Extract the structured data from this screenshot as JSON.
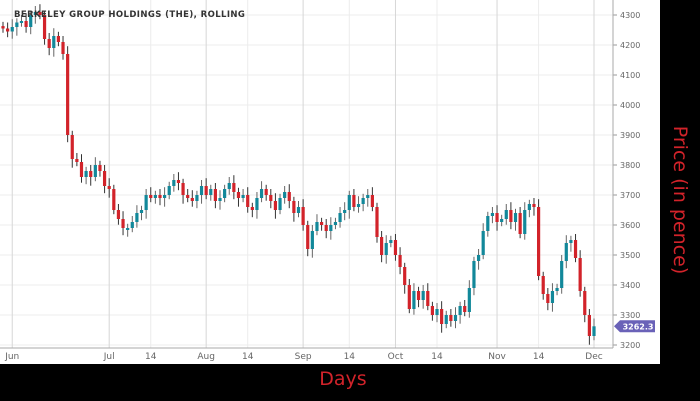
{
  "chart_data": {
    "type": "candlestick",
    "title": "BERKELEY GROUP HOLDINGS (THE), ROLLING",
    "xlabel": "Days",
    "ylabel": "Price (in pence)",
    "ylim": [
      3190,
      4330
    ],
    "yticks": [
      3200,
      3300,
      3400,
      3500,
      3600,
      3700,
      3800,
      3900,
      4000,
      4100,
      4200,
      4300
    ],
    "xticks": [
      {
        "label": "Jun",
        "index": 2,
        "major": true
      },
      {
        "label": "Jul",
        "index": 23,
        "major": true
      },
      {
        "label": "14",
        "index": 32,
        "major": false
      },
      {
        "label": "Aug",
        "index": 44,
        "major": true
      },
      {
        "label": "14",
        "index": 53,
        "major": false
      },
      {
        "label": "Sep",
        "index": 65,
        "major": true
      },
      {
        "label": "14",
        "index": 75,
        "major": false
      },
      {
        "label": "Oct",
        "index": 85,
        "major": true
      },
      {
        "label": "14",
        "index": 94,
        "major": false
      },
      {
        "label": "Nov",
        "index": 107,
        "major": true
      },
      {
        "label": "14",
        "index": 116,
        "major": false
      },
      {
        "label": "Dec",
        "index": 128,
        "major": true
      }
    ],
    "grid": true,
    "close": [
      4255,
      4245,
      4260,
      4275,
      4280,
      4260,
      4300,
      4310,
      4300,
      4220,
      4190,
      4230,
      4210,
      4170,
      3900,
      3820,
      3810,
      3760,
      3780,
      3760,
      3800,
      3780,
      3730,
      3720,
      3650,
      3620,
      3590,
      3590,
      3610,
      3640,
      3650,
      3700,
      3690,
      3700,
      3690,
      3700,
      3730,
      3750,
      3740,
      3700,
      3690,
      3680,
      3700,
      3730,
      3700,
      3720,
      3680,
      3690,
      3720,
      3740,
      3710,
      3690,
      3700,
      3660,
      3650,
      3690,
      3720,
      3700,
      3680,
      3650,
      3690,
      3710,
      3680,
      3640,
      3660,
      3600,
      3520,
      3580,
      3610,
      3600,
      3580,
      3600,
      3610,
      3640,
      3650,
      3700,
      3660,
      3670,
      3690,
      3700,
      3660,
      3560,
      3500,
      3540,
      3550,
      3500,
      3460,
      3400,
      3320,
      3380,
      3350,
      3380,
      3330,
      3300,
      3320,
      3270,
      3300,
      3280,
      3300,
      3330,
      3310,
      3390,
      3480,
      3500,
      3580,
      3630,
      3640,
      3610,
      3620,
      3650,
      3610,
      3640,
      3570,
      3650,
      3670,
      3660,
      3430,
      3370,
      3340,
      3380,
      3390,
      3480,
      3540,
      3550,
      3490,
      3380,
      3300,
      3230,
      3262.3
    ],
    "last_price_label": "3262.3",
    "colors": {
      "up": "#12889a",
      "down": "#d2232a",
      "last_price": "#6a62b8",
      "axis_title": "#d2232a"
    }
  }
}
